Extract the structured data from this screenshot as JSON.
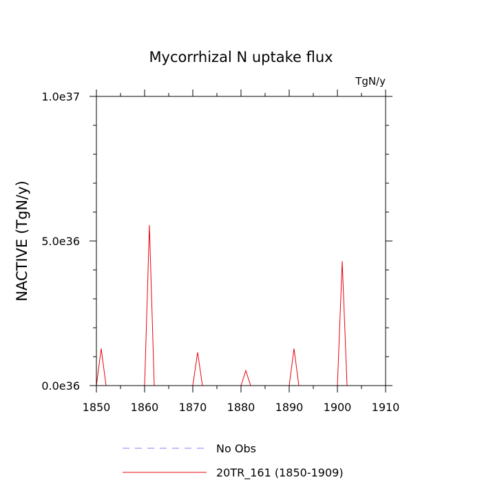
{
  "chart_data": {
    "type": "line",
    "title": "Mycorrhizal N uptake flux",
    "units": "TgN/y",
    "ylabel": "NACTIVE  (TgN/y)",
    "xlabel": "",
    "xlim": [
      1850,
      1910
    ],
    "ylim": [
      0,
      1e+37
    ],
    "x_ticks": [
      1850,
      1860,
      1870,
      1880,
      1890,
      1900,
      1910
    ],
    "x_tick_labels": [
      "1850",
      "1860",
      "1870",
      "1880",
      "1890",
      "1900",
      "1910"
    ],
    "y_ticks": [
      0,
      5e+36,
      1e+37
    ],
    "y_tick_labels": [
      "0.0e36",
      "5.0e36",
      "1.0e37"
    ],
    "grid": false,
    "legend_position": "bottom",
    "series": [
      {
        "name": "No Obs",
        "color": "#7f7fff",
        "dash": "dashed",
        "x": [],
        "y": []
      },
      {
        "name": "20TR_161 (1850-1909)",
        "color": "#e8000b",
        "dash": "solid",
        "x": [
          1850,
          1851,
          1852,
          1853,
          1854,
          1855,
          1856,
          1857,
          1858,
          1859,
          1860,
          1861,
          1862,
          1863,
          1864,
          1865,
          1866,
          1867,
          1868,
          1869,
          1870,
          1871,
          1872,
          1873,
          1874,
          1875,
          1876,
          1877,
          1878,
          1879,
          1880,
          1881,
          1882,
          1883,
          1884,
          1885,
          1886,
          1887,
          1888,
          1889,
          1890,
          1891,
          1892,
          1893,
          1894,
          1895,
          1896,
          1897,
          1898,
          1899,
          1900,
          1901,
          1902,
          1903,
          1904,
          1905,
          1906,
          1907,
          1908,
          1909
        ],
        "y": [
          0,
          1.28e+36,
          0,
          0,
          0,
          0,
          0,
          0,
          0,
          0,
          0,
          5.55e+36,
          0,
          0,
          0,
          0,
          0,
          0,
          0,
          0,
          0,
          1.15e+36,
          0,
          0,
          0,
          0,
          0,
          0,
          0,
          0,
          0,
          5.2e+35,
          0,
          0,
          0,
          0,
          0,
          0,
          0,
          0,
          0,
          1.28e+36,
          0,
          0,
          0,
          0,
          0,
          0,
          0,
          0,
          0,
          4.3e+36,
          0,
          0,
          0,
          0,
          0,
          0,
          0,
          0
        ]
      }
    ]
  }
}
